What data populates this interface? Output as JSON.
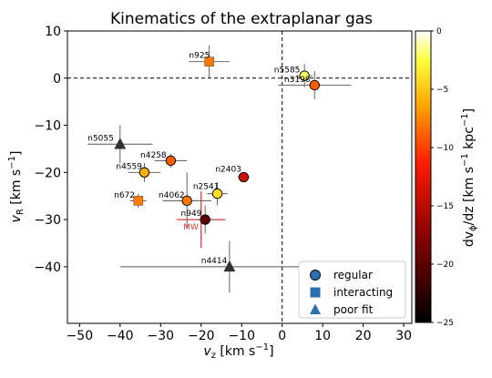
{
  "chart_data": {
    "type": "scatter",
    "title": "Kinematics of the extraplanar gas",
    "xlabel": "v",
    "xlabel_sub": "z",
    "xlabel_unit": " [km s",
    "xlabel_unit_end": "]",
    "ylabel": "v",
    "ylabel_sub": "R",
    "ylabel_unit": " [km s",
    "ylabel_unit_end": "]",
    "unit_exp": "−1",
    "xlim": [
      -53,
      32
    ],
    "ylim": [
      -52,
      10
    ],
    "xticks": [
      -50,
      -40,
      -30,
      -20,
      -10,
      0,
      10,
      20,
      30
    ],
    "yticks": [
      10,
      0,
      -10,
      -20,
      -30,
      -40
    ],
    "xtick_labels": [
      "−50",
      "−40",
      "−30",
      "−20",
      "−10",
      "0",
      "10",
      "20",
      "30"
    ],
    "ytick_labels": [
      "10",
      "0",
      "−10",
      "−20",
      "−30",
      "−40"
    ],
    "reference_lines": {
      "x": 0,
      "y": 0
    },
    "colorbar": {
      "label": "dv",
      "label_sub": "ϕ",
      "label_rest": "/dz [km s",
      "label_mid": " kpc",
      "label_end": "]",
      "label_exp": "−1",
      "range": [
        -25,
        0
      ],
      "ticks": [
        0,
        -5,
        -10,
        -15,
        -20,
        -25
      ],
      "tick_labels": [
        "0",
        "−5",
        "−10",
        "−15",
        "−20",
        "−25"
      ]
    },
    "legend": {
      "placement": "bottom-right",
      "entries": [
        {
          "label": "regular",
          "marker": "circle"
        },
        {
          "label": "interacting",
          "marker": "square"
        },
        {
          "label": "poor fit",
          "marker": "triangle"
        }
      ]
    },
    "points": [
      {
        "name": "n925",
        "x": -18,
        "y": 3.5,
        "xerr": 5,
        "yerr": 3.5,
        "marker": "square",
        "c": -8,
        "lx": -23,
        "ly": 4.3
      },
      {
        "name": "n5585",
        "x": 5.5,
        "y": 0.5,
        "xerr": 2,
        "yerr": 2.5,
        "marker": "circle",
        "c": -2,
        "lx": -2,
        "ly": 1.2
      },
      {
        "name": "n3198",
        "x": 8,
        "y": -1.5,
        "xerr": 9,
        "yerr": 3,
        "marker": "circle",
        "c": -9,
        "lx": 0.5,
        "ly": -0.8
      },
      {
        "name": "n5055",
        "x": -40,
        "y": -14,
        "xerr": 8,
        "yerr": 4,
        "marker": "triangle",
        "c": -28,
        "lx": -48,
        "ly": -13.3
      },
      {
        "name": "n4258",
        "x": -27.5,
        "y": -17.5,
        "xerr": 4,
        "yerr": 1.5,
        "marker": "circle",
        "c": -9,
        "lx": -35,
        "ly": -16.8
      },
      {
        "name": "n4559",
        "x": -34,
        "y": -20,
        "xerr": 4,
        "yerr": 2,
        "marker": "circle",
        "c": -6,
        "lx": -41,
        "ly": -19.3
      },
      {
        "name": "n2403",
        "x": -9.5,
        "y": -21,
        "xerr": 1.5,
        "yerr": 1,
        "marker": "circle",
        "c": -14,
        "lx": -16.5,
        "ly": -19.8
      },
      {
        "name": "n672",
        "x": -35.5,
        "y": -26,
        "xerr": 2,
        "yerr": 1.5,
        "marker": "square",
        "c": -8,
        "lx": -41.5,
        "ly": -25.3
      },
      {
        "name": "n2541",
        "x": -16,
        "y": -24.5,
        "xerr": 2.5,
        "yerr": 2.5,
        "marker": "circle",
        "c": -4,
        "lx": -22,
        "ly": -23.5
      },
      {
        "name": "n4062",
        "x": -23.5,
        "y": -26,
        "xerr": 6,
        "yerr": 6,
        "marker": "circle",
        "c": -8,
        "lx": -30.5,
        "ly": -25.3
      },
      {
        "name": "n949",
        "x": -19,
        "y": -30,
        "xerr": 2,
        "yerr": 3,
        "marker": "circle",
        "c": -20,
        "lx": -25,
        "ly": -29.2
      },
      {
        "name": "n4414",
        "x": -13,
        "y": -40,
        "xerr": 27,
        "yerr": 5.5,
        "marker": "triangle",
        "c": -28,
        "lx": -20,
        "ly": -39.3
      }
    ],
    "mw": {
      "name": "MW",
      "x": -20,
      "y": -30,
      "xerr": 6,
      "yerr": 6,
      "color": "#e03a3a"
    }
  }
}
